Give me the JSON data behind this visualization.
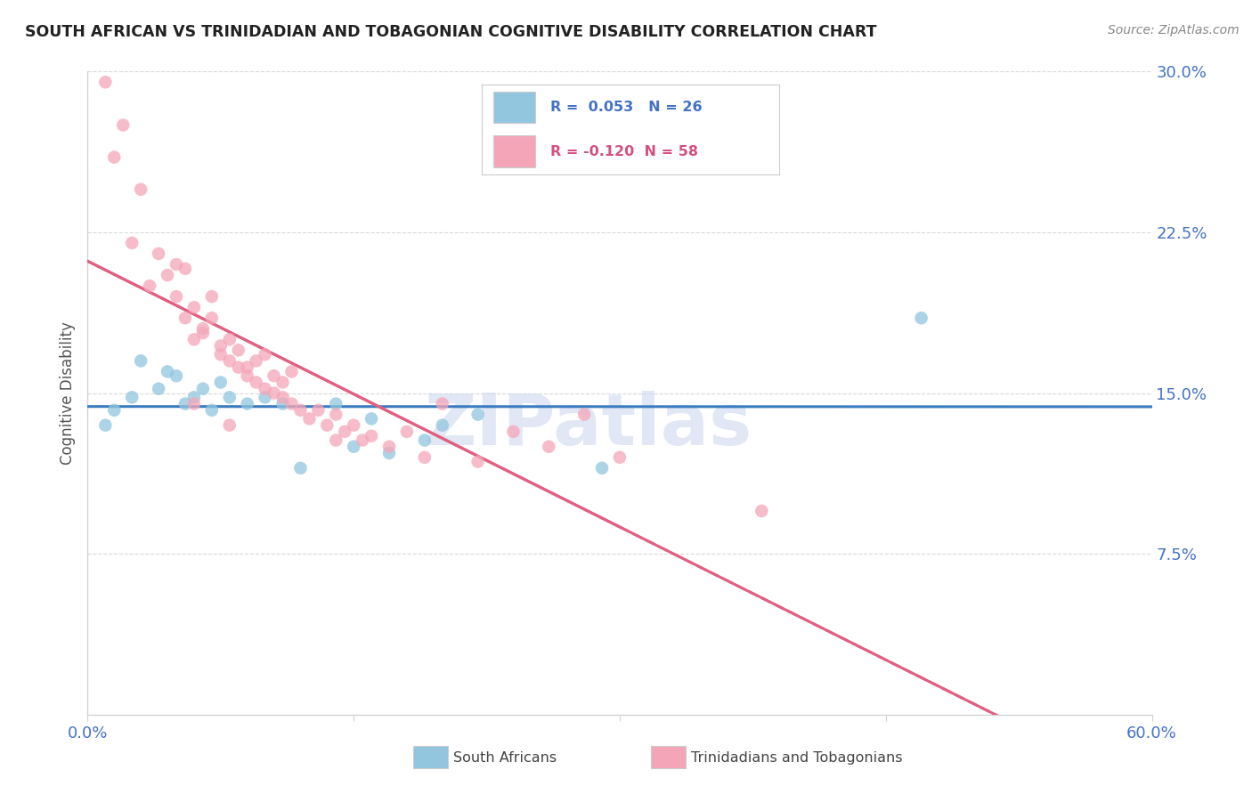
{
  "title": "SOUTH AFRICAN VS TRINIDADIAN AND TOBAGONIAN COGNITIVE DISABILITY CORRELATION CHART",
  "source": "Source: ZipAtlas.com",
  "ylabel": "Cognitive Disability",
  "xlim": [
    0.0,
    60.0
  ],
  "ylim": [
    0.0,
    30.0
  ],
  "yticks": [
    7.5,
    15.0,
    22.5,
    30.0
  ],
  "ytick_labels": [
    "7.5%",
    "15.0%",
    "22.5%",
    "30.0%"
  ],
  "legend_blue_r": "R =  0.053",
  "legend_blue_n": "N = 26",
  "legend_pink_r": "R = -0.120",
  "legend_pink_n": "N = 58",
  "blue_color": "#92c5de",
  "pink_color": "#f4a6b8",
  "blue_line_color": "#3a7bbf",
  "pink_line_color": "#e06080",
  "axis_color": "#4472c4",
  "grid_color": "#d9d9d9",
  "title_color": "#222222",
  "blue_scatter": [
    [
      1.0,
      13.5
    ],
    [
      1.5,
      14.2
    ],
    [
      2.5,
      14.8
    ],
    [
      3.0,
      16.5
    ],
    [
      4.0,
      15.2
    ],
    [
      4.5,
      16.0
    ],
    [
      5.0,
      15.8
    ],
    [
      5.5,
      14.5
    ],
    [
      6.0,
      14.8
    ],
    [
      6.5,
      15.2
    ],
    [
      7.0,
      14.2
    ],
    [
      7.5,
      15.5
    ],
    [
      8.0,
      14.8
    ],
    [
      9.0,
      14.5
    ],
    [
      10.0,
      14.8
    ],
    [
      11.0,
      14.5
    ],
    [
      14.0,
      14.5
    ],
    [
      15.0,
      12.5
    ],
    [
      16.0,
      13.8
    ],
    [
      17.0,
      12.2
    ],
    [
      19.0,
      12.8
    ],
    [
      20.0,
      13.5
    ],
    [
      22.0,
      14.0
    ],
    [
      29.0,
      11.5
    ],
    [
      47.0,
      18.5
    ],
    [
      12.0,
      11.5
    ]
  ],
  "pink_scatter": [
    [
      1.0,
      29.5
    ],
    [
      2.0,
      27.5
    ],
    [
      1.5,
      26.0
    ],
    [
      3.0,
      24.5
    ],
    [
      2.5,
      22.0
    ],
    [
      4.0,
      21.5
    ],
    [
      4.5,
      20.5
    ],
    [
      3.5,
      20.0
    ],
    [
      5.0,
      19.5
    ],
    [
      5.5,
      18.5
    ],
    [
      5.0,
      21.0
    ],
    [
      6.0,
      19.0
    ],
    [
      5.5,
      20.8
    ],
    [
      6.5,
      18.0
    ],
    [
      7.0,
      18.5
    ],
    [
      6.0,
      17.5
    ],
    [
      6.5,
      17.8
    ],
    [
      7.5,
      17.2
    ],
    [
      7.0,
      19.5
    ],
    [
      8.0,
      16.5
    ],
    [
      7.5,
      16.8
    ],
    [
      8.5,
      16.2
    ],
    [
      8.0,
      17.5
    ],
    [
      9.0,
      15.8
    ],
    [
      8.5,
      17.0
    ],
    [
      9.5,
      15.5
    ],
    [
      9.0,
      16.2
    ],
    [
      10.0,
      15.2
    ],
    [
      9.5,
      16.5
    ],
    [
      10.5,
      15.0
    ],
    [
      10.0,
      16.8
    ],
    [
      11.0,
      14.8
    ],
    [
      10.5,
      15.8
    ],
    [
      11.5,
      14.5
    ],
    [
      11.0,
      15.5
    ],
    [
      12.0,
      14.2
    ],
    [
      11.5,
      16.0
    ],
    [
      12.5,
      13.8
    ],
    [
      13.0,
      14.2
    ],
    [
      13.5,
      13.5
    ],
    [
      14.0,
      14.0
    ],
    [
      14.5,
      13.2
    ],
    [
      15.0,
      13.5
    ],
    [
      15.5,
      12.8
    ],
    [
      16.0,
      13.0
    ],
    [
      17.0,
      12.5
    ],
    [
      18.0,
      13.2
    ],
    [
      19.0,
      12.0
    ],
    [
      20.0,
      14.5
    ],
    [
      22.0,
      11.8
    ],
    [
      24.0,
      13.2
    ],
    [
      26.0,
      12.5
    ],
    [
      28.0,
      14.0
    ],
    [
      30.0,
      12.0
    ],
    [
      14.0,
      12.8
    ],
    [
      6.0,
      14.5
    ],
    [
      8.0,
      13.5
    ],
    [
      38.0,
      9.5
    ]
  ],
  "watermark_text": "ZIPatlas",
  "watermark_color": "#cdd8ef",
  "watermark_alpha": 0.6
}
